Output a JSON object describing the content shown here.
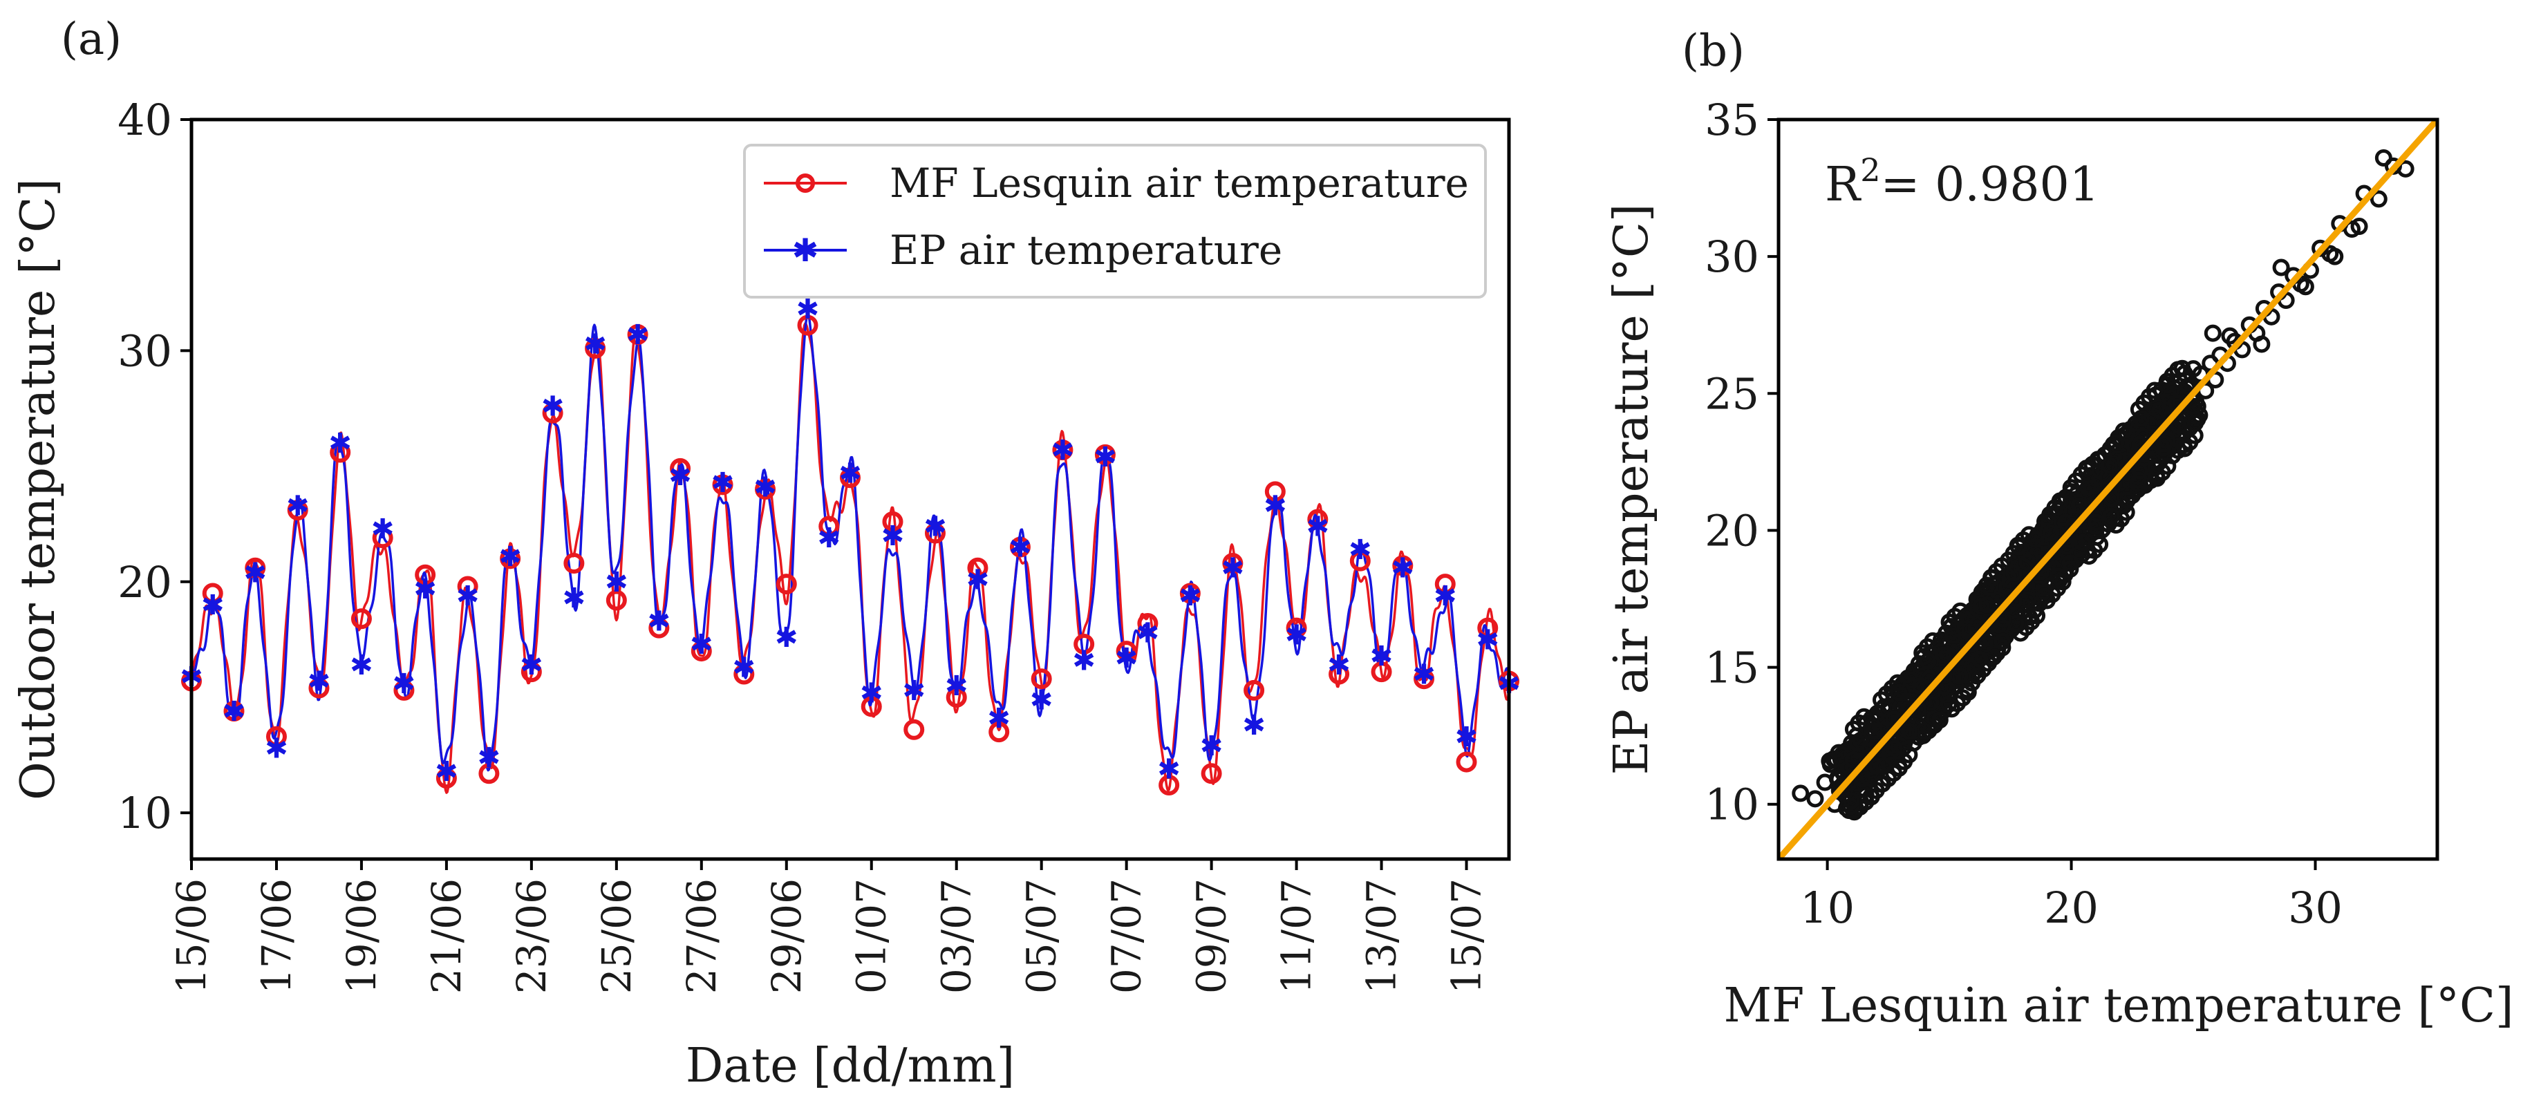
{
  "chart_data": [
    {
      "panel_label": "(a)",
      "type": "line",
      "xlabel": "Date [dd/mm]",
      "ylabel": "Outdoor temperature [°C]",
      "ylim": [
        8,
        40
      ],
      "yticks": [
        10,
        20,
        30,
        40
      ],
      "xlim_days": [
        0,
        31
      ],
      "xtick_labels": [
        "15/06",
        "17/06",
        "19/06",
        "21/06",
        "23/06",
        "25/06",
        "27/06",
        "29/06",
        "01/07",
        "03/07",
        "05/07",
        "07/07",
        "09/07",
        "11/07",
        "13/07",
        "15/07"
      ],
      "legend_position": "top-right",
      "series": [
        {
          "name": "MF Lesquin air temperature",
          "color": "#e8191f",
          "marker": "circle",
          "days": [
            0,
            0.5,
            1,
            1.5,
            2,
            2.5,
            3,
            3.5,
            4,
            4.5,
            5,
            5.5,
            6,
            6.5,
            7,
            7.5,
            8,
            8.5,
            9,
            9.5,
            10,
            10.5,
            11,
            11.5,
            12,
            12.5,
            13,
            13.5,
            14,
            14.5,
            15,
            15.5,
            16,
            16.5,
            17,
            17.5,
            18,
            18.5,
            19,
            19.5,
            20,
            20.5,
            21,
            21.5,
            22,
            22.5,
            23,
            23.5,
            24,
            24.5,
            25,
            25.5,
            26,
            26.5,
            27,
            27.5,
            28,
            28.5,
            29,
            29.5,
            30,
            30.5,
            31
          ],
          "values": [
            15.7,
            19.5,
            14.4,
            20.6,
            13.3,
            23.1,
            15.4,
            25.6,
            18.4,
            21.9,
            15.3,
            20.3,
            11.5,
            19.8,
            11.7,
            21.0,
            16.1,
            27.3,
            20.8,
            30.1,
            19.2,
            30.7,
            18.0,
            24.9,
            17.0,
            24.2,
            16.0,
            24.0,
            19.9,
            31.1,
            22.4,
            24.5,
            14.6,
            22.6,
            13.6,
            22.1,
            15.0,
            20.6,
            13.5,
            21.5,
            15.8,
            25.7,
            17.3,
            25.5,
            17.0,
            18.2,
            11.2,
            19.5,
            11.7,
            20.8,
            15.3,
            23.9,
            18.0,
            22.7,
            16.0,
            20.9,
            16.1,
            20.7,
            15.8,
            19.9,
            12.2,
            18.0,
            15.7
          ]
        },
        {
          "name": "EP air temperature",
          "color": "#1515e0",
          "marker": "star",
          "days": [
            0,
            0.5,
            1,
            1.5,
            2,
            2.5,
            3,
            3.5,
            4,
            4.5,
            5,
            5.5,
            6,
            6.5,
            7,
            7.5,
            8,
            8.5,
            9,
            9.5,
            10,
            10.5,
            11,
            11.5,
            12,
            12.5,
            13,
            13.5,
            14,
            14.5,
            15,
            15.5,
            16,
            16.5,
            17,
            17.5,
            18,
            18.5,
            19,
            19.5,
            20,
            20.5,
            21,
            21.5,
            22,
            22.5,
            23,
            23.5,
            24,
            24.5,
            25,
            25.5,
            26,
            26.5,
            27,
            27.5,
            28,
            28.5,
            29,
            29.5,
            30,
            30.5,
            31
          ],
          "values": [
            15.9,
            19.0,
            14.4,
            20.4,
            12.8,
            23.3,
            15.7,
            26.0,
            16.4,
            22.3,
            15.6,
            19.7,
            11.8,
            19.4,
            12.4,
            21.1,
            16.4,
            27.6,
            19.3,
            30.3,
            20.0,
            30.7,
            18.3,
            24.6,
            17.3,
            24.3,
            16.3,
            24.1,
            17.6,
            31.8,
            21.9,
            24.7,
            15.2,
            22.0,
            15.3,
            22.4,
            15.5,
            20.1,
            14.1,
            21.5,
            14.9,
            25.7,
            16.6,
            25.4,
            16.7,
            17.8,
            11.9,
            19.4,
            12.9,
            20.6,
            13.8,
            23.3,
            17.7,
            22.4,
            16.4,
            21.4,
            16.8,
            20.6,
            16.0,
            19.4,
            13.3,
            17.5,
            15.6
          ]
        }
      ]
    },
    {
      "panel_label": "(b)",
      "type": "scatter",
      "xlabel": "MF Lesquin air temperature [°C]",
      "ylabel": "EP air temperature [°C]",
      "xlim": [
        8,
        35
      ],
      "ylim": [
        8,
        35
      ],
      "xticks": [
        10,
        20,
        30
      ],
      "yticks": [
        10,
        15,
        20,
        25,
        30,
        35
      ],
      "r2_label": "R",
      "r2_sup": "2",
      "r2_text": "= 0.9801",
      "r2_value": 0.9801,
      "fit_line": {
        "slope": 1.0,
        "intercept": 0.0,
        "color": "#f5a400"
      },
      "point_color": "#111111",
      "x": [
        8.9,
        9.5,
        9.9,
        10.3,
        10.5,
        10.9,
        11.2,
        11.5,
        11.8,
        12.0,
        12.3,
        12.5,
        12.7,
        12.9,
        13.1,
        13.3,
        13.5,
        13.7,
        13.9,
        14.1,
        14.3,
        14.5,
        14.7,
        14.9,
        15.1,
        15.3,
        15.5,
        15.7,
        15.9,
        16.1,
        16.3,
        16.5,
        16.7,
        16.9,
        17.1,
        17.3,
        17.5,
        17.7,
        17.9,
        18.1,
        18.3,
        18.5,
        18.7,
        18.9,
        19.1,
        19.3,
        19.5,
        19.7,
        19.9,
        20.1,
        20.3,
        20.5,
        20.7,
        20.9,
        21.1,
        21.3,
        21.5,
        21.7,
        21.9,
        22.1,
        22.3,
        22.5,
        22.7,
        22.9,
        23.1,
        23.3,
        23.5,
        23.7,
        23.9,
        24.1,
        24.3,
        24.5,
        24.7,
        24.9,
        25.1,
        25.3,
        25.5,
        25.7,
        25.9,
        26.1,
        26.4,
        26.7,
        27.0,
        27.3,
        27.6,
        27.9,
        28.2,
        28.5,
        28.8,
        29.1,
        29.4,
        29.8,
        30.2,
        30.6,
        31.0,
        31.5,
        32.0,
        32.6,
        33.2,
        33.7,
        12.5,
        13.2,
        13.8,
        14.4,
        15.0,
        15.6,
        16.2,
        16.8,
        17.4,
        18.0,
        18.6,
        19.2,
        19.8,
        20.4,
        21.0,
        21.6,
        22.2,
        22.8,
        23.4,
        24.0,
        14.0,
        15.2,
        16.6,
        17.8,
        19.0,
        20.2,
        21.4,
        22.6,
        23.8,
        25.0,
        13.0,
        14.6,
        16.0,
        17.2,
        18.4,
        19.6,
        20.8,
        22.0,
        23.2,
        24.4,
        20.0,
        21.0,
        19.0,
        18.0,
        22.0,
        17.0,
        23.0,
        16.0,
        24.0,
        15.0,
        26.5,
        27.8,
        28.6,
        29.6,
        30.8,
        31.8,
        32.8,
        16.4,
        18.8,
        21.2,
        23.6,
        25.8,
        24.2,
        19.4,
        17.6
      ],
      "y": [
        10.4,
        10.2,
        10.8,
        10.0,
        10.6,
        11.3,
        10.9,
        11.8,
        11.4,
        12.3,
        12.0,
        12.8,
        12.4,
        13.4,
        12.8,
        13.9,
        13.1,
        14.3,
        13.6,
        14.6,
        14.0,
        15.2,
        14.3,
        15.4,
        14.7,
        15.9,
        15.0,
        16.3,
        15.5,
        16.5,
        15.9,
        17.0,
        16.2,
        17.3,
        16.6,
        17.7,
        17.0,
        18.1,
        17.4,
        18.5,
        17.8,
        18.9,
        18.2,
        19.3,
        18.6,
        19.7,
        19.0,
        20.1,
        19.5,
        20.5,
        19.9,
        20.9,
        20.3,
        21.3,
        20.7,
        21.7,
        21.1,
        22.1,
        21.5,
        22.5,
        21.9,
        22.9,
        22.3,
        23.3,
        22.7,
        23.7,
        23.1,
        24.1,
        23.5,
        24.5,
        23.9,
        24.9,
        24.3,
        25.3,
        24.7,
        25.7,
        25.1,
        26.1,
        25.5,
        26.4,
        26.1,
        26.9,
        26.6,
        27.5,
        27.2,
        28.1,
        27.8,
        28.7,
        28.4,
        29.3,
        29.0,
        29.5,
        30.3,
        30.1,
        31.2,
        31.0,
        32.3,
        32.1,
        33.3,
        33.2,
        13.5,
        12.4,
        14.6,
        13.5,
        15.9,
        14.7,
        17.1,
        15.8,
        18.2,
        17.1,
        19.4,
        18.2,
        20.6,
        19.4,
        21.8,
        20.7,
        23.0,
        21.8,
        24.1,
        23.1,
        13.0,
        16.2,
        15.6,
        18.9,
        18.1,
        21.3,
        20.5,
        23.6,
        22.9,
        25.9,
        14.2,
        13.6,
        17.1,
        16.2,
        19.6,
        18.7,
        22.0,
        21.0,
        24.3,
        23.5,
        21.1,
        20.0,
        18.0,
        19.2,
        21.0,
        18.1,
        22.1,
        14.8,
        25.1,
        14.4,
        27.1,
        26.8,
        29.6,
        28.9,
        30.0,
        31.1,
        33.6,
        17.8,
        17.6,
        22.6,
        22.5,
        27.2,
        23.1,
        20.6,
        16.5
      ]
    }
  ]
}
